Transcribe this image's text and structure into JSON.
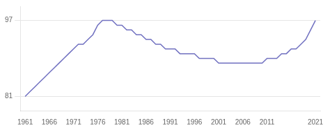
{
  "chart_data": {
    "type": "line",
    "x": [
      1961,
      1962,
      1963,
      1964,
      1965,
      1966,
      1967,
      1968,
      1969,
      1970,
      1971,
      1972,
      1973,
      1974,
      1975,
      1976,
      1977,
      1978,
      1979,
      1980,
      1981,
      1982,
      1983,
      1984,
      1985,
      1986,
      1987,
      1988,
      1989,
      1990,
      1991,
      1992,
      1993,
      1994,
      1995,
      1996,
      1997,
      1998,
      1999,
      2000,
      2001,
      2002,
      2003,
      2004,
      2005,
      2006,
      2007,
      2008,
      2009,
      2010,
      2011,
      2012,
      2013,
      2014,
      2015,
      2016,
      2017,
      2018,
      2019,
      2020,
      2021
    ],
    "values": [
      81,
      82,
      83,
      84,
      85,
      86,
      87,
      88,
      89,
      90,
      91,
      92,
      92,
      93,
      94,
      96,
      97,
      97,
      97,
      96,
      96,
      95,
      95,
      94,
      94,
      93,
      93,
      92,
      92,
      91,
      91,
      91,
      90,
      90,
      90,
      90,
      89,
      89,
      89,
      89,
      88,
      88,
      88,
      88,
      88,
      88,
      88,
      88,
      88,
      88,
      89,
      89,
      89,
      90,
      90,
      91,
      91,
      92,
      93,
      95,
      97
    ],
    "color": "#7070c0",
    "xlim": [
      1960,
      2022
    ],
    "xticks": [
      1961,
      1966,
      1971,
      1976,
      1981,
      1986,
      1991,
      1996,
      2001,
      2006,
      2011,
      2021
    ],
    "ylim": [
      78,
      100
    ],
    "yticks": [
      81,
      97
    ],
    "grid": true
  }
}
